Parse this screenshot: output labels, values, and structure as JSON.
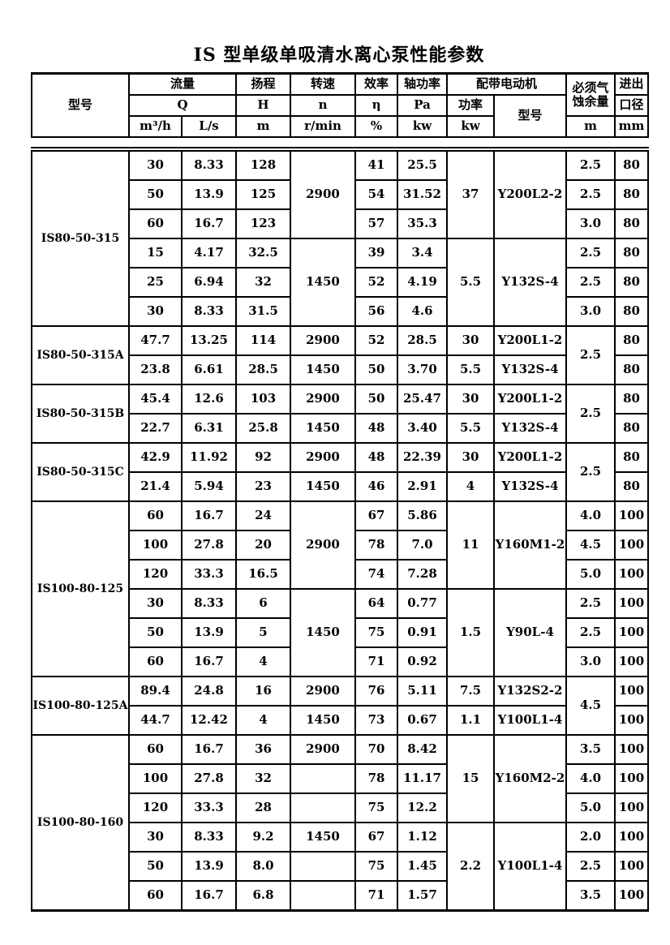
{
  "title": "IS 型单级单吸清水离心泵性能参数",
  "header": {
    "model": "型号",
    "flow": "流量",
    "flow_symbol": "Q",
    "flow_unit_m3h": "m³/h",
    "flow_unit_ls": "L/s",
    "head": "扬程",
    "head_symbol": "H",
    "head_unit": "m",
    "speed": "转速",
    "speed_symbol": "n",
    "speed_unit": "r/min",
    "efficiency": "效率",
    "efficiency_symbol": "η",
    "efficiency_unit": "%",
    "shaft_power": "轴功率",
    "shaft_power_symbol": "Pa",
    "shaft_power_unit": "kw",
    "motor": "配带电动机",
    "motor_power": "功率",
    "motor_power_unit": "kw",
    "motor_model": "型号",
    "npsh": "必须气蚀余量",
    "npsh_unit": "m",
    "bore_line1": "进出",
    "bore_line2": "口径",
    "bore_unit": "mm"
  },
  "groups": [
    {
      "model": "IS80-50-315",
      "rows": [
        [
          "30",
          "8.33",
          "128",
          {
            "v": "2900",
            "rs": 3
          },
          "41",
          "25.5",
          {
            "v": "37",
            "rs": 3
          },
          {
            "v": "Y200L2-2",
            "rs": 3
          },
          "2.5",
          "80"
        ],
        [
          "50",
          "13.9",
          "125",
          null,
          "54",
          "31.52",
          null,
          null,
          "2.5",
          "80"
        ],
        [
          "60",
          "16.7",
          "123",
          null,
          "57",
          "35.3",
          null,
          null,
          "3.0",
          "80"
        ],
        [
          "15",
          "4.17",
          "32.5",
          {
            "v": "1450",
            "rs": 3
          },
          "39",
          "3.4",
          {
            "v": "5.5",
            "rs": 3
          },
          {
            "v": "Y132S-4",
            "rs": 3
          },
          "2.5",
          "80"
        ],
        [
          "25",
          "6.94",
          "32",
          null,
          "52",
          "4.19",
          null,
          null,
          "2.5",
          "80"
        ],
        [
          "30",
          "8.33",
          "31.5",
          null,
          "56",
          "4.6",
          null,
          null,
          "3.0",
          "80"
        ]
      ]
    },
    {
      "model": "IS80-50-315A",
      "rows": [
        [
          "47.7",
          "13.25",
          "114",
          "2900",
          "52",
          "28.5",
          "30",
          "Y200L1-2",
          {
            "v": "2.5",
            "rs": 2
          },
          "80"
        ],
        [
          "23.8",
          "6.61",
          "28.5",
          "1450",
          "50",
          "3.70",
          "5.5",
          "Y132S-4",
          null,
          "80"
        ]
      ]
    },
    {
      "model": "IS80-50-315B",
      "rows": [
        [
          "45.4",
          "12.6",
          "103",
          "2900",
          "50",
          "25.47",
          "30",
          "Y200L1-2",
          {
            "v": "2.5",
            "rs": 2
          },
          "80"
        ],
        [
          "22.7",
          "6.31",
          "25.8",
          "1450",
          "48",
          "3.40",
          "5.5",
          "Y132S-4",
          null,
          "80"
        ]
      ]
    },
    {
      "model": "IS80-50-315C",
      "rows": [
        [
          "42.9",
          "11.92",
          "92",
          "2900",
          "48",
          "22.39",
          "30",
          "Y200L1-2",
          {
            "v": "2.5",
            "rs": 2
          },
          "80"
        ],
        [
          "21.4",
          "5.94",
          "23",
          "1450",
          "46",
          "2.91",
          "4",
          "Y132S-4",
          null,
          "80"
        ]
      ]
    },
    {
      "model": "IS100-80-125",
      "rows": [
        [
          "60",
          "16.7",
          "24",
          {
            "v": "2900",
            "rs": 3
          },
          "67",
          "5.86",
          {
            "v": "11",
            "rs": 3
          },
          {
            "v": "Y160M1-2",
            "rs": 3
          },
          "4.0",
          "100"
        ],
        [
          "100",
          "27.8",
          "20",
          null,
          "78",
          "7.0",
          null,
          null,
          "4.5",
          "100"
        ],
        [
          "120",
          "33.3",
          "16.5",
          null,
          "74",
          "7.28",
          null,
          null,
          "5.0",
          "100"
        ],
        [
          "30",
          "8.33",
          "6",
          {
            "v": "1450",
            "rs": 3
          },
          "64",
          "0.77",
          {
            "v": "1.5",
            "rs": 3
          },
          {
            "v": "Y90L-4",
            "rs": 3
          },
          "2.5",
          "100"
        ],
        [
          "50",
          "13.9",
          "5",
          null,
          "75",
          "0.91",
          null,
          null,
          "2.5",
          "100"
        ],
        [
          "60",
          "16.7",
          "4",
          null,
          "71",
          "0.92",
          null,
          null,
          "3.0",
          "100"
        ]
      ]
    },
    {
      "model": "IS100-80-125A",
      "rows": [
        [
          "89.4",
          "24.8",
          "16",
          "2900",
          "76",
          "5.11",
          "7.5",
          "Y132S2-2",
          {
            "v": "4.5",
            "rs": 2
          },
          "100"
        ],
        [
          "44.7",
          "12.42",
          "4",
          "1450",
          "73",
          "0.67",
          "1.1",
          "Y100L1-4",
          null,
          "100"
        ]
      ]
    },
    {
      "model": "IS100-80-160",
      "rows": [
        [
          "60",
          "16.7",
          "36",
          "2900",
          "70",
          "8.42",
          {
            "v": "15",
            "rs": 3
          },
          {
            "v": "Y160M2-2",
            "rs": 3
          },
          "3.5",
          "100"
        ],
        [
          "100",
          "27.8",
          "32",
          "",
          "78",
          "11.17",
          null,
          null,
          "4.0",
          "100"
        ],
        [
          "120",
          "33.3",
          "28",
          "",
          "75",
          "12.2",
          null,
          null,
          "5.0",
          "100"
        ],
        [
          "30",
          "8.33",
          "9.2",
          "1450",
          "67",
          "1.12",
          {
            "v": "2.2",
            "rs": 3
          },
          {
            "v": "Y100L1-4",
            "rs": 3
          },
          "2.0",
          "100"
        ],
        [
          "50",
          "13.9",
          "8.0",
          "",
          "75",
          "1.45",
          null,
          null,
          "2.5",
          "100"
        ],
        [
          "60",
          "16.7",
          "6.8",
          "",
          "71",
          "1.57",
          null,
          null,
          "3.5",
          "100"
        ]
      ]
    }
  ]
}
